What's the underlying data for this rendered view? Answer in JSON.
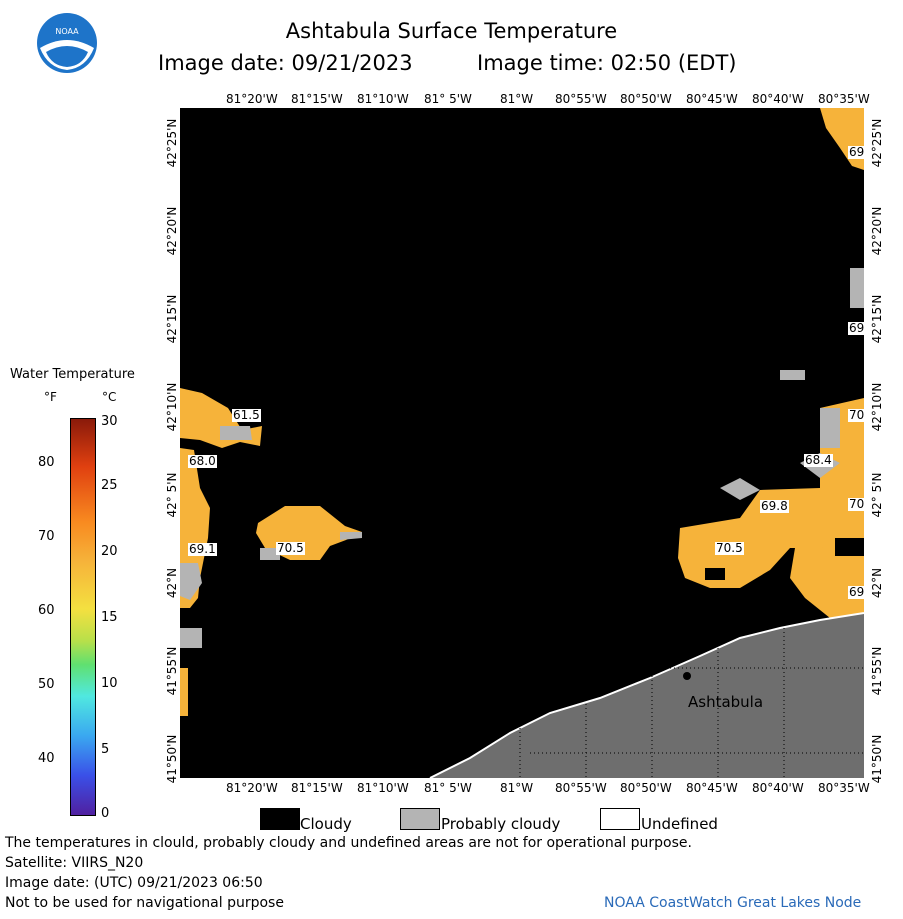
{
  "header": {
    "title": "Ashtabula Surface Temperature",
    "image_date": "Image date: 09/21/2023",
    "image_time": "Image time: 02:50 (EDT)"
  },
  "logo": {
    "text": "NOAA"
  },
  "axes": {
    "lon_top": [
      "81°20'W",
      "81°15'W",
      "81°10'W",
      "81° 5'W",
      "81°W",
      "80°55'W",
      "80°50'W",
      "80°45'W",
      "80°40'W",
      "80°35'W"
    ],
    "lon_bottom": [
      "81°20'W",
      "81°15'W",
      "81°10'W",
      "81° 5'W",
      "81°W",
      "80°55'W",
      "80°50'W",
      "80°45'W",
      "80°40'W",
      "80°35'W"
    ],
    "lat_left": [
      "42°25'N",
      "42°20'N",
      "42°15'N",
      "42°10'N",
      "42° 5'N",
      "42°N",
      "41°55'N",
      "41°50'N"
    ],
    "lat_right": [
      "42°25'N",
      "42°20'N",
      "42°15'N",
      "42°10'N",
      "42° 5'N",
      "42°N",
      "41°55'N",
      "41°50'N"
    ]
  },
  "temperature_scale": {
    "title": "Water Temperature",
    "unit_f": "°F",
    "unit_c": "°C",
    "f_ticks": [
      "80",
      "70",
      "60",
      "50",
      "40"
    ],
    "c_ticks": [
      "30",
      "25",
      "20",
      "15",
      "10",
      "5",
      "0"
    ]
  },
  "data_labels": [
    "61.5",
    "68.0",
    "69.1",
    "70.5",
    "70.5",
    "69.8",
    "68.4",
    "70",
    "70",
    "69",
    "69",
    "69"
  ],
  "place_label": "Ashtabula",
  "legend": {
    "cloudy": "Cloudy",
    "probably_cloudy": "Probably cloudy",
    "undefined": "Undefined"
  },
  "footer": {
    "disclaimer": "The temperatures in clould, probably cloudy and undefined areas are not for operational purpose.",
    "satellite": "Satellite: VIIRS_N20",
    "utc_date": "Image date: (UTC) 09/21/2023  06:50",
    "navigation": "Not to be used for navigational purpose",
    "credit": "NOAA CoastWatch Great Lakes Node"
  },
  "colors": {
    "water_warm": "#f6b33a",
    "probably_cloudy": "#b4b4b4",
    "cloudy": "#000000",
    "land": "#6e6e6e",
    "credit_text": "#2a6ab8"
  }
}
